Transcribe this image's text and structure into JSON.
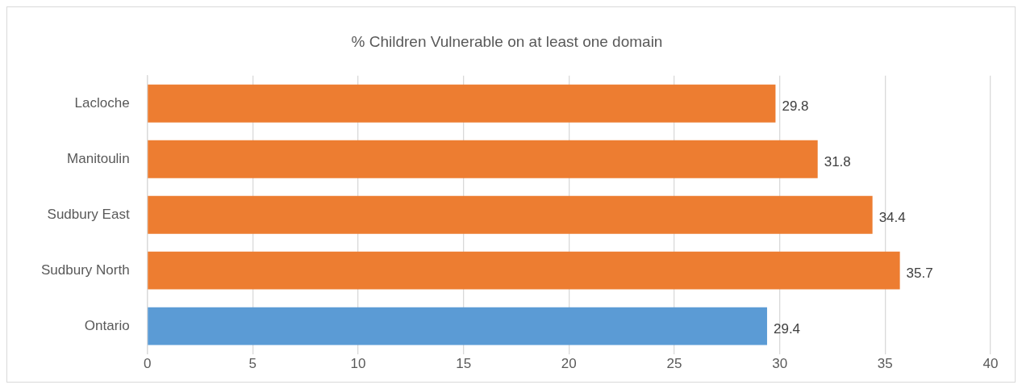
{
  "chart_data": {
    "type": "bar",
    "orientation": "horizontal",
    "title": "% Children Vulnerable on at least one domain",
    "categories": [
      "Lacloche",
      "Manitoulin",
      "Sudbury East",
      "Sudbury North",
      "Ontario"
    ],
    "values": [
      29.8,
      31.8,
      34.4,
      35.7,
      29.4
    ],
    "colors": [
      "#ed7d31",
      "#ed7d31",
      "#ed7d31",
      "#ed7d31",
      "#5b9bd5"
    ],
    "xlim": [
      0,
      40
    ],
    "xticks": [
      0,
      5,
      10,
      15,
      20,
      25,
      30,
      35,
      40
    ],
    "grid": "x",
    "data_labels": true,
    "legend": false
  }
}
